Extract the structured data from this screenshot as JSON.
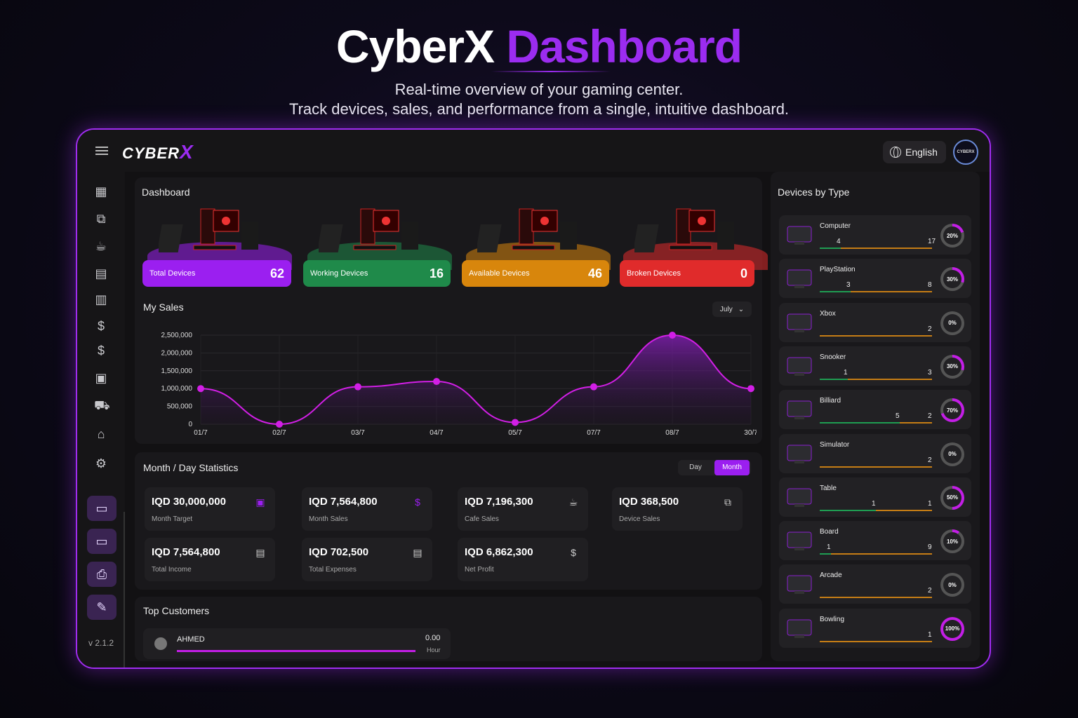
{
  "hero": {
    "title_part1": "CyberX",
    "title_part2": "Dashboard",
    "subtitle_line1": "Real-time overview of your gaming center.",
    "subtitle_line2": "Track devices, sales, and performance from a single, intuitive dashboard."
  },
  "header": {
    "logo_text": "CYBER",
    "logo_x": "X",
    "language": "English",
    "avatar_text": "CYBERX"
  },
  "sidebar": {
    "icons": [
      "grid-icon",
      "devices-icon",
      "coffee-icon",
      "wallet-icon",
      "archive-icon",
      "coin-icon",
      "dollar-icon",
      "report-icon",
      "cart-icon",
      "store-icon",
      "gear-icon"
    ],
    "version": "v 2.1.2"
  },
  "dashboard": {
    "title": "Dashboard",
    "cards": [
      {
        "label": "Total Devices",
        "value": "62",
        "color": "#9b1ff0"
      },
      {
        "label": "Working Devices",
        "value": "16",
        "color": "#1f8a4a"
      },
      {
        "label": "Available Devices",
        "value": "46",
        "color": "#d8860c"
      },
      {
        "label": "Broken Devices",
        "value": "0",
        "color": "#e02b2b"
      }
    ]
  },
  "sales": {
    "title": "My Sales",
    "month": "July"
  },
  "chart_data": {
    "type": "area",
    "x": [
      "01/7",
      "02/7",
      "03/7",
      "04/7",
      "05/7",
      "07/7",
      "08/7",
      "30/7"
    ],
    "values": [
      1000000,
      0,
      1050000,
      1200000,
      50000,
      1050000,
      2500000,
      1000000
    ],
    "yticks": [
      "2,500,000",
      "2,000,000",
      "1,500,000",
      "1,000,000",
      "500,000",
      "0"
    ],
    "ylim": [
      0,
      2500000
    ],
    "color": "#d21fe6"
  },
  "stats": {
    "title": "Month / Day Statistics",
    "toggle_day": "Day",
    "toggle_month": "Month",
    "items": [
      {
        "value": "IQD 30,000,000",
        "label": "Month Target",
        "icon": "target-icon"
      },
      {
        "value": "IQD 7,564,800",
        "label": "Month Sales",
        "icon": "dollar-icon"
      },
      {
        "value": "IQD 7,196,300",
        "label": "Cafe Sales",
        "icon": "coffee-icon"
      },
      {
        "value": "IQD 368,500",
        "label": "Device Sales",
        "icon": "devices-icon"
      },
      {
        "value": "IQD 7,564,800",
        "label": "Total Income",
        "icon": "cash-icon"
      },
      {
        "value": "IQD 702,500",
        "label": "Total Expenses",
        "icon": "cash-icon"
      },
      {
        "value": "IQD 6,862,300",
        "label": "Net Profit",
        "icon": "moneybag-icon"
      }
    ]
  },
  "customers": {
    "title": "Top Customers",
    "items": [
      {
        "name": "AHMED",
        "value": "0.00",
        "unit": "Hour"
      }
    ]
  },
  "device_types": {
    "title": "Devices by Type",
    "items": [
      {
        "name": "Computer",
        "n1": "4",
        "n2": "17",
        "pct": "20%",
        "fraction": 0.2
      },
      {
        "name": "PlayStation",
        "n1": "3",
        "n2": "8",
        "pct": "30%",
        "fraction": 0.3
      },
      {
        "name": "Xbox",
        "n1": "",
        "n2": "2",
        "pct": "0%",
        "fraction": 0
      },
      {
        "name": "Snooker",
        "n1": "1",
        "n2": "3",
        "pct": "30%",
        "fraction": 0.3
      },
      {
        "name": "Billiard",
        "n1": "5",
        "n2": "2",
        "pct": "70%",
        "fraction": 0.7
      },
      {
        "name": "Simulator",
        "n1": "",
        "n2": "2",
        "pct": "0%",
        "fraction": 0
      },
      {
        "name": "Table",
        "n1": "1",
        "n2": "1",
        "pct": "50%",
        "fraction": 0.5
      },
      {
        "name": "Board",
        "n1": "1",
        "n2": "9",
        "pct": "10%",
        "fraction": 0.1
      },
      {
        "name": "Arcade",
        "n1": "",
        "n2": "2",
        "pct": "0%",
        "fraction": 0
      },
      {
        "name": "Bowling",
        "n1": "",
        "n2": "1",
        "pct": "100%",
        "fraction": 1
      }
    ]
  }
}
